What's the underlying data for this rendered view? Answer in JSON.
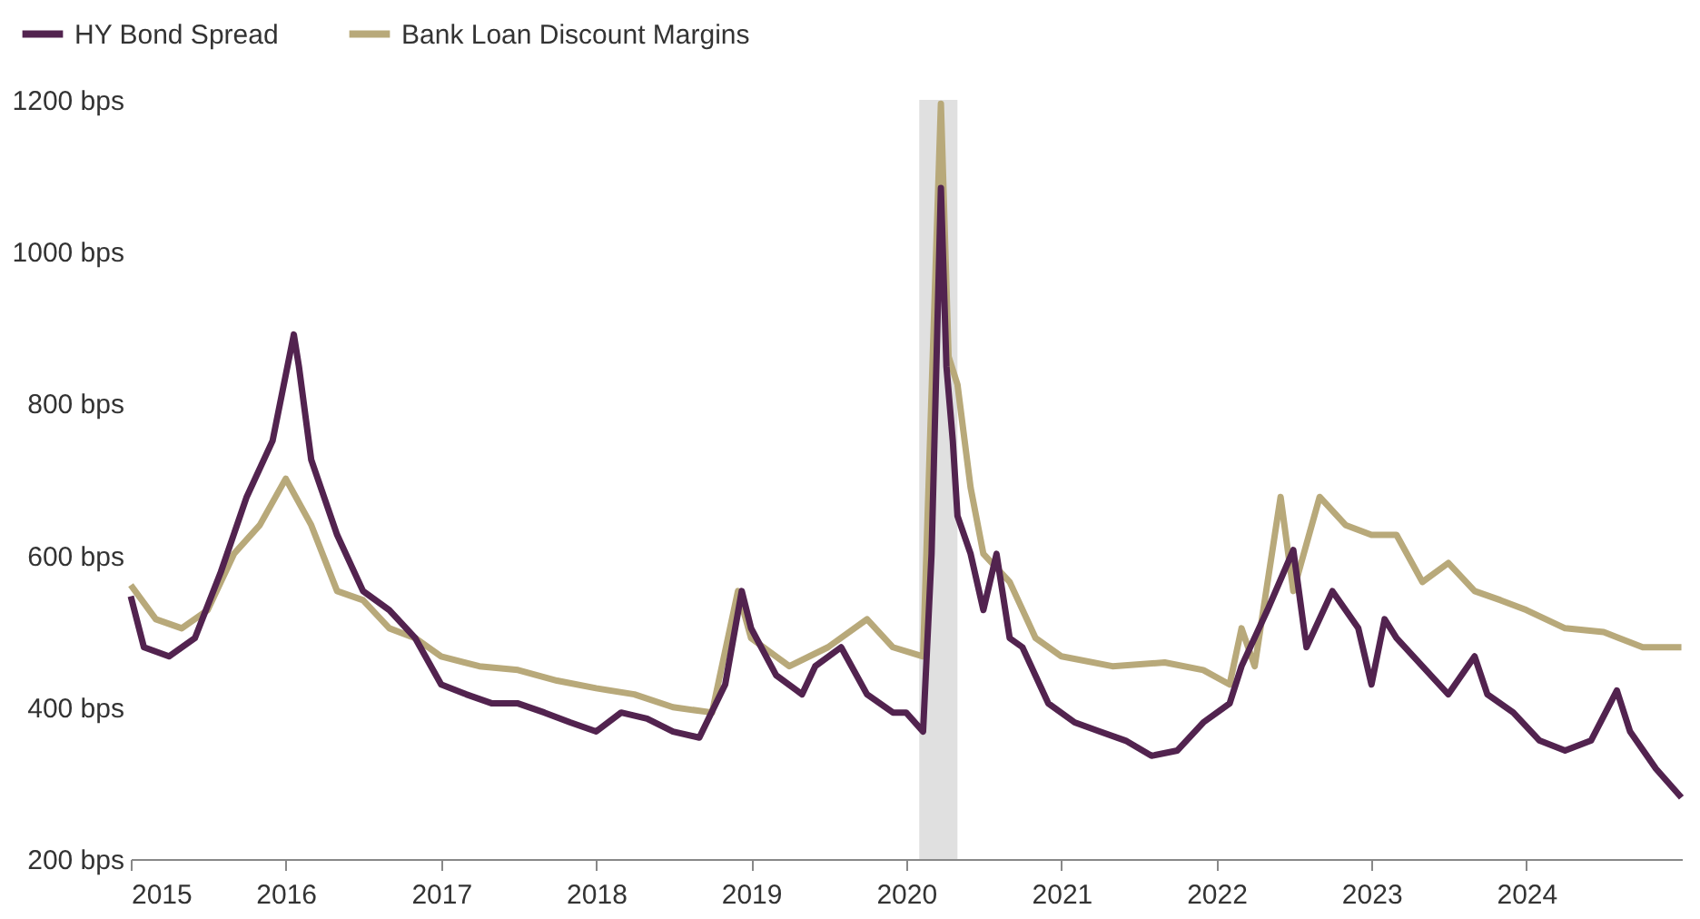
{
  "chart_data": {
    "type": "line",
    "legend": "top left",
    "grid": false,
    "line_style": "solid",
    "marker": "none",
    "xlim": [
      "2015-01-01",
      "2025-01-01"
    ],
    "xticks": [
      "2015",
      "2016",
      "2017",
      "2018",
      "2019",
      "2020",
      "2021",
      "2022",
      "2023",
      "2024"
    ],
    "ylim": [
      200,
      1200
    ],
    "yticks": [
      {
        "value": 200,
        "label": "200 bps"
      },
      {
        "value": 400,
        "label": "400 bps"
      },
      {
        "value": 600,
        "label": "600 bps"
      },
      {
        "value": 800,
        "label": "800 bps"
      },
      {
        "value": 1000,
        "label": "1000 bps"
      },
      {
        "value": 1200,
        "label": "1200 bps"
      }
    ],
    "bands": [
      {
        "axis": "x",
        "from": "2020-02-01",
        "to": "2020-05-01",
        "color": "#e0e0e0"
      }
    ],
    "series": [
      {
        "name": "HY Bond Spread",
        "color": "#52234f",
        "x": [
          "2015-01",
          "2015-02",
          "2015-04",
          "2015-06",
          "2015-08",
          "2015-10",
          "2015-12",
          "2016-01-20",
          "2016-02",
          "2016-03",
          "2016-05",
          "2016-07",
          "2016-09",
          "2016-11",
          "2017-01",
          "2017-03",
          "2017-05",
          "2017-07",
          "2017-09",
          "2017-11",
          "2018-01",
          "2018-03",
          "2018-05",
          "2018-07",
          "2018-09",
          "2018-11",
          "2018-12-10",
          "2019-01",
          "2019-03",
          "2019-05",
          "2019-06",
          "2019-08",
          "2019-10",
          "2019-12",
          "2020-01",
          "2020-02-10",
          "2020-03-01",
          "2020-03-23",
          "2020-04-05",
          "2020-04-20",
          "2020-05",
          "2020-06",
          "2020-07",
          "2020-08",
          "2020-09",
          "2020-10",
          "2020-12",
          "2021-02",
          "2021-04",
          "2021-06",
          "2021-08",
          "2021-10",
          "2021-12",
          "2022-02",
          "2022-03",
          "2022-05",
          "2022-07",
          "2022-08",
          "2022-10",
          "2022-12",
          "2023-01",
          "2023-02",
          "2023-03",
          "2023-05",
          "2023-07",
          "2023-09",
          "2023-10",
          "2023-12",
          "2024-02",
          "2024-04",
          "2024-06",
          "2024-08",
          "2024-09",
          "2024-11",
          "2024-12-31"
        ],
        "values": [
          546,
          479,
          467,
          491,
          578,
          677,
          751,
          891,
          849,
          726,
          627,
          553,
          528,
          491,
          430,
          417,
          405,
          405,
          393,
          380,
          368,
          393,
          385,
          368,
          360,
          430,
          553,
          504,
          442,
          417,
          454,
          479,
          417,
          393,
          393,
          368,
          602,
          1084,
          849,
          751,
          652,
          602,
          528,
          602,
          491,
          479,
          405,
          380,
          368,
          356,
          336,
          343,
          380,
          405,
          454,
          528,
          607,
          479,
          553,
          504,
          430,
          516,
          491,
          454,
          417,
          467,
          417,
          393,
          356,
          343,
          356,
          422,
          368,
          319,
          281
        ]
      },
      {
        "name": "Bank Loan Discount Margins",
        "color": "#b8a97a",
        "x": [
          "2015-01",
          "2015-03",
          "2015-05",
          "2015-07",
          "2015-09",
          "2015-11",
          "2016-01",
          "2016-03",
          "2016-05",
          "2016-07",
          "2016-09",
          "2016-11",
          "2017-01",
          "2017-04",
          "2017-07",
          "2017-10",
          "2018-01",
          "2018-04",
          "2018-07",
          "2018-10",
          "2018-12",
          "2019-01",
          "2019-04",
          "2019-07",
          "2019-10",
          "2019-12",
          "2020-02-10",
          "2020-03-23",
          "2020-04-10",
          "2020-05-01",
          "2020-06",
          "2020-07",
          "2020-09",
          "2020-11",
          "2021-01",
          "2021-05",
          "2021-09",
          "2021-12",
          "2022-02",
          "2022-03",
          "2022-04",
          "2022-06",
          "2022-07",
          "2022-09",
          "2022-11",
          "2023-01",
          "2023-03",
          "2023-05",
          "2023-07",
          "2023-09",
          "2023-11",
          "2024-01",
          "2024-04",
          "2024-07",
          "2024-10",
          "2024-12-31"
        ],
        "values": [
          561,
          516,
          504,
          528,
          602,
          640,
          701,
          640,
          553,
          541,
          504,
          491,
          467,
          454,
          449,
          435,
          425,
          417,
          400,
          393,
          553,
          491,
          454,
          479,
          516,
          479,
          467,
          1195,
          862,
          825,
          689,
          602,
          565,
          491,
          467,
          454,
          459,
          449,
          430,
          504,
          454,
          677,
          553,
          677,
          640,
          627,
          627,
          565,
          590,
          553,
          541,
          528,
          504,
          499,
          479,
          479
        ]
      }
    ]
  }
}
